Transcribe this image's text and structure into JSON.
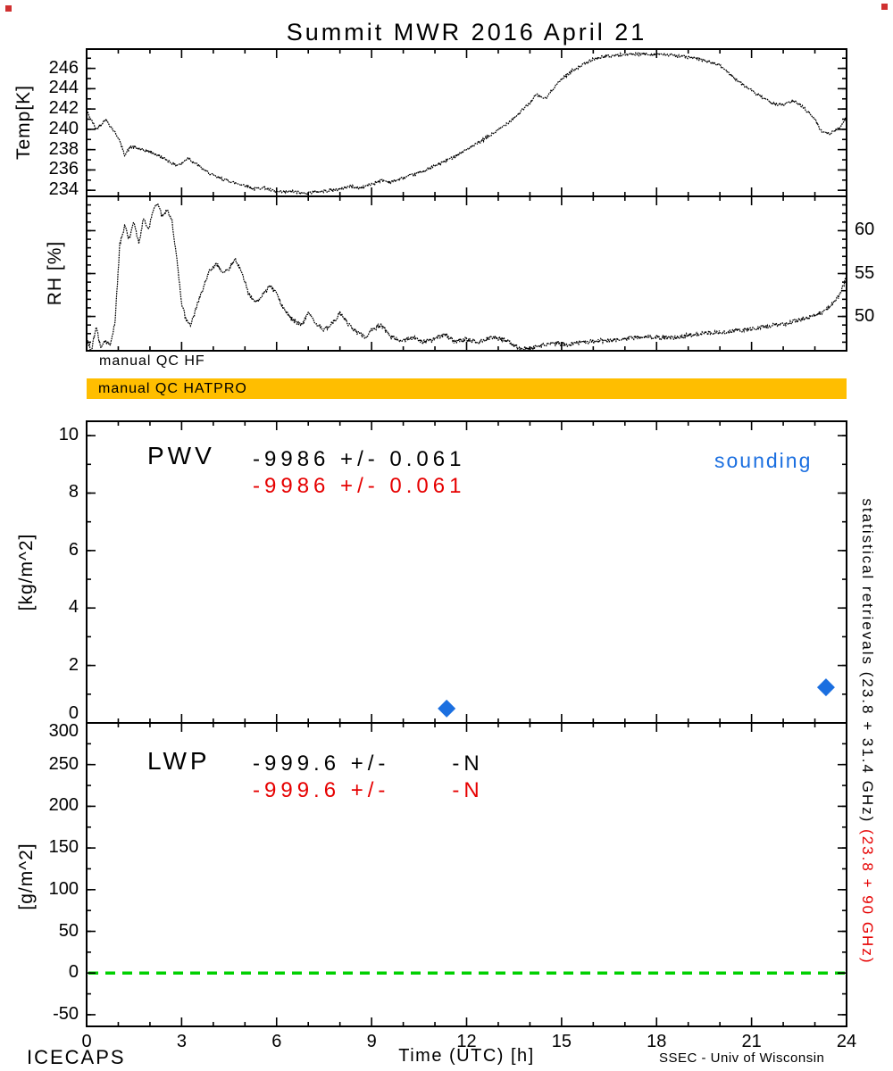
{
  "title": "Summit MWR 2016 April 21",
  "footer": {
    "left": "ICECAPS",
    "right": "SSEC - Univ of Wisconsin"
  },
  "qc": {
    "hf_label": "manual QC HF",
    "hatpro_label": "manual QC HATPRO",
    "bar_color": "#FFBE00"
  },
  "side_labels": {
    "black": "statistical retrievals (23.8 + 31.4 GHz)",
    "red": " (23.8 + 90 GHz)"
  },
  "colors": {
    "red": "#E60000",
    "blue": "#1B6FE0",
    "green": "#00D000",
    "black": "#000000"
  },
  "chart_data": [
    {
      "id": "temp",
      "type": "line",
      "ylabel": "Temp[K]",
      "ylabel_side": "left",
      "xlim": [
        0,
        24
      ],
      "ylim": [
        233.4,
        247.9
      ],
      "yticks": [
        234,
        236,
        238,
        240,
        242,
        244,
        246
      ],
      "y_minor": 1,
      "x_major": 3,
      "x_minor": 1,
      "noise": 0.15,
      "xtick_labels": false,
      "x": [
        0,
        0.3,
        0.6,
        1,
        1.2,
        1.4,
        1.7,
        2,
        2.4,
        2.8,
        3,
        3.2,
        3.5,
        3.8,
        4.1,
        4.4,
        4.7,
        5,
        5.3,
        5.6,
        5.9,
        6.2,
        6.5,
        6.8,
        7.1,
        7.4,
        7.7,
        8,
        8.3,
        8.6,
        9,
        9.3,
        9.6,
        10,
        10.4,
        10.8,
        11.2,
        11.6,
        12,
        12.4,
        12.8,
        13.2,
        13.6,
        14,
        14.2,
        14.5,
        14.8,
        15.1,
        15.4,
        15.7,
        16,
        16.4,
        16.8,
        17.2,
        17.6,
        18,
        18.4,
        18.8,
        19.2,
        19.6,
        20,
        20.3,
        20.6,
        21,
        21.3,
        21.6,
        22,
        22.3,
        22.6,
        23,
        23.2,
        23.5,
        23.8,
        24
      ],
      "y": [
        241.8,
        240.0,
        241.0,
        239.2,
        237.5,
        238.3,
        238.0,
        237.8,
        237.2,
        236.5,
        236.6,
        237.2,
        236.5,
        235.8,
        235.3,
        235.0,
        234.7,
        234.5,
        234.1,
        234.3,
        233.9,
        233.8,
        233.9,
        233.7,
        233.8,
        233.9,
        234.0,
        234.1,
        234.4,
        234.2,
        234.6,
        235.0,
        234.8,
        235.2,
        235.6,
        236.1,
        236.7,
        237.3,
        238.0,
        238.7,
        239.5,
        240.4,
        241.4,
        242.6,
        243.4,
        243.0,
        244.3,
        245.2,
        245.9,
        246.4,
        246.9,
        247.2,
        247.3,
        247.4,
        247.4,
        247.4,
        247.3,
        247.2,
        247.0,
        246.7,
        246.3,
        245.5,
        244.7,
        243.8,
        243.2,
        242.6,
        242.4,
        242.8,
        242.3,
        241.0,
        239.8,
        239.6,
        240.2,
        241.3
      ]
    },
    {
      "id": "rh",
      "type": "line",
      "ylabel": "RH [%]",
      "ylabel_side": "right",
      "xlim": [
        0,
        24
      ],
      "ylim": [
        46,
        64
      ],
      "yticks": [
        50,
        55,
        60
      ],
      "y_minor": 1,
      "x_major": 3,
      "x_minor": 1,
      "noise": 0.25,
      "xtick_labels": false,
      "x": [
        0,
        0.15,
        0.3,
        0.45,
        0.6,
        0.75,
        0.9,
        1.05,
        1.2,
        1.35,
        1.5,
        1.65,
        1.8,
        1.95,
        2.1,
        2.25,
        2.4,
        2.55,
        2.7,
        2.85,
        3,
        3.15,
        3.3,
        3.5,
        3.7,
        3.9,
        4.1,
        4.3,
        4.5,
        4.7,
        4.9,
        5.1,
        5.3,
        5.5,
        5.8,
        6,
        6.2,
        6.5,
        6.8,
        7,
        7.2,
        7.5,
        7.8,
        8,
        8.2,
        8.5,
        8.8,
        9,
        9.3,
        9.6,
        10,
        10.3,
        10.6,
        11,
        11.3,
        11.6,
        12,
        12.4,
        12.8,
        13.2,
        13.6,
        14,
        14.4,
        14.8,
        15.2,
        15.6,
        16,
        16.5,
        17,
        17.5,
        18,
        18.5,
        19,
        19.5,
        20,
        20.5,
        21,
        21.5,
        22,
        22.5,
        23,
        23.3,
        23.6,
        23.8,
        24
      ],
      "y": [
        47.5,
        46.0,
        48.8,
        46.3,
        47.2,
        46.5,
        49.5,
        58.5,
        60.5,
        59.0,
        61.0,
        58.5,
        61.5,
        60.0,
        62.5,
        63.3,
        61.5,
        62.5,
        61.0,
        56.5,
        51.5,
        49.5,
        49.0,
        51.5,
        53.5,
        55.5,
        56.2,
        55.0,
        55.6,
        56.6,
        55.2,
        52.8,
        51.6,
        52.2,
        53.6,
        52.6,
        51.0,
        49.6,
        49.0,
        50.4,
        49.4,
        48.4,
        49.4,
        50.4,
        49.4,
        48.2,
        47.6,
        48.4,
        49.0,
        47.6,
        47.2,
        47.6,
        47.0,
        47.3,
        47.9,
        47.1,
        47.3,
        47.1,
        47.6,
        47.3,
        46.4,
        46.2,
        46.6,
        46.9,
        46.7,
        47.0,
        47.1,
        47.2,
        47.4,
        47.6,
        47.6,
        47.5,
        47.8,
        48.0,
        48.1,
        48.4,
        48.5,
        48.9,
        49.1,
        49.6,
        50.1,
        50.6,
        51.6,
        52.6,
        54.6
      ]
    },
    {
      "id": "pwv",
      "type": "scatter",
      "ylabel": "[kg/m^2]",
      "ylabel_side": "left",
      "xlim": [
        0,
        24
      ],
      "ylim": [
        0,
        10.5
      ],
      "yticks": [
        0,
        2,
        4,
        6,
        8,
        10
      ],
      "y_minor": 1,
      "x_major": 3,
      "x_minor": 1,
      "xtick_labels": false,
      "label_nudge": {
        "0": -10
      },
      "points": [
        {
          "x": 11.37,
          "y": 0.5
        },
        {
          "x": 23.35,
          "y": 1.24
        }
      ],
      "marker": "diamond",
      "marker_color": "#1B6FE0",
      "annotations": {
        "label": "PWV",
        "stat_black": "-9986 +/- 0.061",
        "stat_red": "-9986 +/- 0.061",
        "legend": "sounding"
      }
    },
    {
      "id": "lwp",
      "type": "scatter",
      "ylabel": "[g/m^2]",
      "ylabel_side": "left",
      "xlim": [
        0,
        24
      ],
      "ylim": [
        -64,
        300
      ],
      "yticks": [
        -50,
        0,
        50,
        100,
        150,
        200,
        250,
        300
      ],
      "y_minor": 25,
      "x_major": 3,
      "x_minor": 1,
      "xtick_labels": true,
      "xticks": [
        0,
        3,
        6,
        9,
        12,
        15,
        18,
        21,
        24
      ],
      "xlabel": "Time (UTC) [h]",
      "label_nudge": {
        "300": 10
      },
      "ref_line": {
        "y": 0,
        "color": "#00D000",
        "dash": "11 8",
        "width": 3.5
      },
      "annotations": {
        "label": "LWP",
        "stat_black": "-999.6 +/-      -N",
        "stat_red": "-999.6 +/-      -N"
      }
    }
  ]
}
